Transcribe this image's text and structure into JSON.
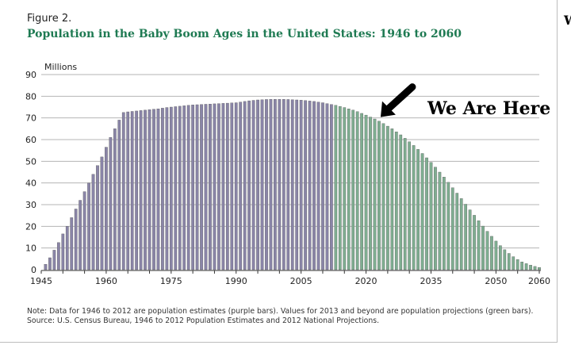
{
  "figure_label": "Figure 2.",
  "chart_data": {
    "type": "bar",
    "title": "Population in the Baby Boom Ages in the United States: 1946 to 2060",
    "ylabel": "Millions",
    "xlabel": "",
    "ylim": [
      0,
      90
    ],
    "xlim": [
      1945,
      2060
    ],
    "yticks": [
      0,
      10,
      20,
      30,
      40,
      50,
      60,
      70,
      80,
      90
    ],
    "xticks": [
      1945,
      1960,
      1975,
      1990,
      2005,
      2020,
      2035,
      2050,
      2060
    ],
    "grid": "horizontal",
    "colors": {
      "estimates": "#8a85a8",
      "projections": "#7fae91",
      "grid": "#b5b5b5"
    },
    "annotation": {
      "text": "We Are Here",
      "year": 2023,
      "icon": "arrow-icon"
    },
    "series": [
      {
        "kind": "estimates",
        "years": [
          1946,
          1947,
          1948,
          1949,
          1950,
          1951,
          1952,
          1953,
          1954,
          1955,
          1956,
          1957,
          1958,
          1959,
          1960,
          1961,
          1962,
          1963,
          1964,
          1965,
          1966,
          1967,
          1968,
          1969,
          1970,
          1971,
          1972,
          1973,
          1974,
          1975,
          1976,
          1977,
          1978,
          1979,
          1980,
          1981,
          1982,
          1983,
          1984,
          1985,
          1986,
          1987,
          1988,
          1989,
          1990,
          1991,
          1992,
          1993,
          1994,
          1995,
          1996,
          1997,
          1998,
          1999,
          2000,
          2001,
          2002,
          2003,
          2004,
          2005,
          2006,
          2007,
          2008,
          2009,
          2010,
          2011,
          2012
        ],
        "values": [
          2.5,
          5.5,
          9,
          12.5,
          16.5,
          20,
          24,
          28,
          32,
          36,
          40,
          44,
          48,
          52,
          56.5,
          61,
          65,
          69,
          72.5,
          72.8,
          73,
          73.2,
          73.4,
          73.6,
          73.8,
          74,
          74.2,
          74.5,
          74.8,
          75,
          75.2,
          75.4,
          75.6,
          75.8,
          76,
          76.1,
          76.2,
          76.3,
          76.4,
          76.5,
          76.6,
          76.7,
          76.8,
          76.9,
          77,
          77.3,
          77.6,
          77.9,
          78.1,
          78.3,
          78.4,
          78.5,
          78.6,
          78.6,
          78.6,
          78.6,
          78.5,
          78.4,
          78.3,
          78.2,
          78,
          77.8,
          77.6,
          77.3,
          77,
          76.6,
          76.2
        ]
      },
      {
        "kind": "projections",
        "years": [
          2013,
          2014,
          2015,
          2016,
          2017,
          2018,
          2019,
          2020,
          2021,
          2022,
          2023,
          2024,
          2025,
          2026,
          2027,
          2028,
          2029,
          2030,
          2031,
          2032,
          2033,
          2034,
          2035,
          2036,
          2037,
          2038,
          2039,
          2040,
          2041,
          2042,
          2043,
          2044,
          2045,
          2046,
          2047,
          2048,
          2049,
          2050,
          2051,
          2052,
          2053,
          2054,
          2055,
          2056,
          2057,
          2058,
          2059,
          2060
        ],
        "values": [
          75.8,
          75.3,
          74.8,
          74.2,
          73.6,
          72.9,
          72.1,
          71.3,
          70.4,
          69.5,
          68.5,
          67.4,
          66.2,
          65,
          63.6,
          62.2,
          60.6,
          59,
          57.3,
          55.5,
          53.6,
          51.6,
          49.5,
          47.3,
          45,
          42.7,
          40.3,
          37.8,
          35.3,
          32.8,
          30.2,
          27.6,
          25.1,
          22.6,
          20.1,
          17.7,
          15.4,
          13.2,
          11.1,
          9.2,
          7.5,
          6,
          4.7,
          3.6,
          2.8,
          2.1,
          1.5,
          1
        ]
      }
    ]
  },
  "edge_letter": "W",
  "note_line1": "Note: Data for 1946 to 2012 are population estimates (purple bars). Values for 2013 and beyond are population projections (green bars).",
  "note_line2": "Source: U.S. Census Bureau, 1946 to 2012 Population Estimates and 2012 National Projections."
}
